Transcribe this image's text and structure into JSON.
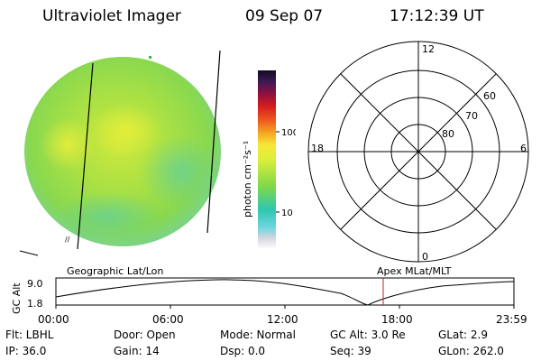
{
  "header": {
    "title": "Ultraviolet Imager",
    "date": "09 Sep 07",
    "time": "17:12:39 UT"
  },
  "colorbar": {
    "unit_label": "photon cm⁻²s⁻¹",
    "tick_labels": [
      "100",
      "10"
    ]
  },
  "polar_plot": {
    "mlt_labels": {
      "top": "12",
      "left": "18",
      "right": "6",
      "bottom": "0"
    },
    "lat_labels": [
      "60",
      "70",
      "80"
    ]
  },
  "orbit_plot": {
    "y_axis_label": "GC Alt",
    "y_ticks": [
      "9.0",
      "1.8"
    ],
    "left_title": "Geographic Lat/Lon",
    "right_title": "Apex MLat/MLT",
    "x_ticks": [
      "00:00",
      "06:00",
      "12:00",
      "18:00",
      "23:59"
    ]
  },
  "info": {
    "row1": {
      "flt": "Flt: LBHL",
      "door": "Door: Open",
      "mode": "Mode: Normal",
      "gc_alt": "GC Alt: 3.0 Re",
      "glat": "GLat:  2.9"
    },
    "row2": {
      "ip": "IP: 36.0",
      "gain": "Gain: 14",
      "dsp": "Dsp:    0.0",
      "seq": "Seq: 39",
      "glon": "GLon: 262.0"
    }
  },
  "colors": {
    "image_base": "#9fe04a",
    "orbit_marker": "#c02020"
  }
}
